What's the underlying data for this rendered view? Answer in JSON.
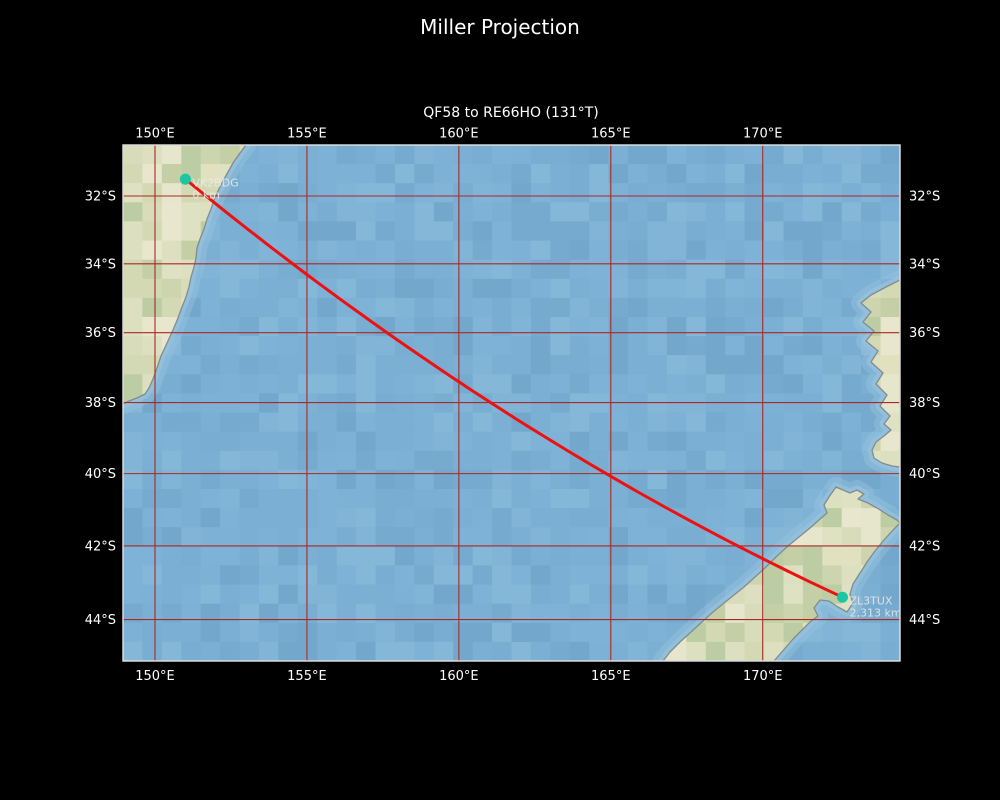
{
  "title": "Miller Projection",
  "subtitle": "QF58 to RE66HO (131°T)",
  "figure": {
    "background": "#000000",
    "text_color": "#ffffff"
  },
  "map": {
    "projection": "Miller",
    "extent": {
      "lon_min": 148.95,
      "lon_max": 174.5,
      "lat_min": -45.15,
      "lat_max": -30.55
    },
    "gridline_color": "#a82a26",
    "border_color": "#e4e4e4",
    "ocean_color": "#7bafd3",
    "shallow_color": "#96c3de",
    "land_color": "#dce0c0",
    "coast_color": "#848b8e",
    "label_color": "#e9e9e9"
  },
  "axes": {
    "lon_ticks": [
      {
        "value": 150,
        "label": "150°E"
      },
      {
        "value": 155,
        "label": "155°E"
      },
      {
        "value": 160,
        "label": "160°E"
      },
      {
        "value": 165,
        "label": "165°E"
      },
      {
        "value": 170,
        "label": "170°E"
      }
    ],
    "lat_ticks": [
      {
        "value": -32,
        "label": "32°S"
      },
      {
        "value": -34,
        "label": "34°S"
      },
      {
        "value": -36,
        "label": "36°S"
      },
      {
        "value": -38,
        "label": "38°S"
      },
      {
        "value": -40,
        "label": "40°S"
      },
      {
        "value": -42,
        "label": "42°S"
      },
      {
        "value": -44,
        "label": "44°S"
      }
    ]
  },
  "route": {
    "from_grid": "QF58",
    "to_grid": "RE66HO",
    "bearing_label": "131°T",
    "type": "great_circle",
    "color": "#ee1111"
  },
  "markers": [
    {
      "id": "start",
      "grid": "QF58",
      "callsign": "VK2BDG",
      "distance_label": "0 km",
      "lon": 151.0,
      "lat": -31.5,
      "color": "#1dc6a2"
    },
    {
      "id": "end",
      "grid": "RE66HO",
      "callsign": "ZL3TUX",
      "distance_label": "2,313 km",
      "lon": 172.625,
      "lat": -43.396,
      "color": "#1dc6a2"
    }
  ]
}
